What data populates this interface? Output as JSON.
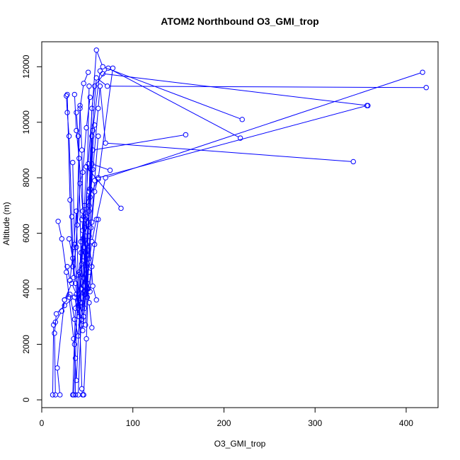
{
  "chart_data": {
    "type": "line",
    "title": "ATOM2 Northbound O3_GMI_trop",
    "xlabel": "O3_GMI_trop",
    "ylabel": "Altitude (m)",
    "xlim": [
      0,
      435
    ],
    "ylim": [
      -280,
      12900
    ],
    "x_ticks": [
      0,
      100,
      200,
      300,
      400
    ],
    "y_ticks": [
      0,
      2000,
      4000,
      6000,
      8000,
      10000,
      12000
    ],
    "grid": false,
    "legend": "none",
    "colors": {
      "series": "#0000ff",
      "axis": "#000000"
    },
    "series": [
      {
        "points": [
          [
            12,
            180
          ],
          [
            13,
            2700
          ],
          [
            15,
            2800
          ],
          [
            22,
            3200
          ],
          [
            25,
            3600
          ],
          [
            31,
            3800
          ],
          [
            36,
            2900
          ],
          [
            40,
            2300
          ],
          [
            44,
            3500
          ],
          [
            47,
            3800
          ],
          [
            55,
            5700
          ],
          [
            60,
            6500
          ],
          [
            70,
            8000
          ],
          [
            418,
            11800
          ]
        ]
      },
      {
        "points": [
          [
            15,
            180
          ],
          [
            14,
            2400
          ],
          [
            16,
            3100
          ],
          [
            25,
            3400
          ],
          [
            36,
            3700
          ],
          [
            45,
            2500
          ],
          [
            48,
            4500
          ],
          [
            52,
            7000
          ],
          [
            55,
            9500
          ],
          [
            60,
            11600
          ],
          [
            72,
            11300
          ],
          [
            422,
            11250
          ]
        ]
      },
      {
        "points": [
          [
            20,
            180
          ],
          [
            17,
            1150
          ],
          [
            25,
            3600
          ],
          [
            33,
            4200
          ],
          [
            38,
            3800
          ],
          [
            46,
            3000
          ],
          [
            50,
            4200
          ],
          [
            55,
            6400
          ],
          [
            58,
            7500
          ],
          [
            62,
            8000
          ],
          [
            357,
            10600
          ]
        ]
      },
      {
        "points": [
          [
            35,
            180
          ],
          [
            37,
            1500
          ],
          [
            40,
            4500
          ],
          [
            45,
            5000
          ],
          [
            48,
            3900
          ],
          [
            50,
            5200
          ],
          [
            53,
            7600
          ],
          [
            56,
            9700
          ],
          [
            64,
            11850
          ],
          [
            67,
            11750
          ],
          [
            358,
            10600
          ]
        ]
      },
      {
        "points": [
          [
            45,
            180
          ],
          [
            44,
            400
          ],
          [
            41,
            3600
          ],
          [
            46,
            4100
          ],
          [
            49,
            5600
          ],
          [
            52,
            6800
          ],
          [
            56,
            8300
          ],
          [
            62,
            10500
          ],
          [
            64,
            11300
          ],
          [
            70,
            9250
          ],
          [
            342,
            8580
          ]
        ]
      },
      {
        "points": [
          [
            37,
            180
          ],
          [
            36,
            2000
          ],
          [
            41,
            3800
          ],
          [
            43,
            5700
          ],
          [
            47,
            6200
          ],
          [
            51,
            8500
          ],
          [
            60,
            12600
          ],
          [
            67,
            12000
          ],
          [
            220,
            10100
          ]
        ]
      },
      {
        "points": [
          [
            46,
            180
          ],
          [
            49,
            2200
          ],
          [
            51,
            4000
          ],
          [
            48,
            5900
          ],
          [
            52,
            7500
          ],
          [
            55,
            10500
          ],
          [
            58,
            11300
          ],
          [
            73,
            11950
          ],
          [
            218,
            9430
          ]
        ]
      },
      {
        "points": [
          [
            40,
            180
          ],
          [
            43,
            2700
          ],
          [
            47,
            3900
          ],
          [
            50,
            5400
          ],
          [
            53,
            7300
          ],
          [
            56,
            9000
          ],
          [
            158,
            9550
          ]
        ]
      },
      {
        "points": [
          [
            34,
            180
          ],
          [
            37,
            3300
          ],
          [
            41,
            4600
          ],
          [
            45,
            5800
          ],
          [
            49,
            8400
          ],
          [
            87,
            6900
          ]
        ]
      },
      {
        "points": [
          [
            18,
            6430
          ],
          [
            22,
            5800
          ],
          [
            27,
            4600
          ],
          [
            30,
            3700
          ],
          [
            35,
            2200
          ],
          [
            38,
            700
          ],
          [
            42,
            3500
          ],
          [
            45,
            6100
          ],
          [
            47,
            7000
          ],
          [
            62,
            7950
          ],
          [
            78,
            11950
          ]
        ]
      },
      {
        "points": [
          [
            27,
            10950
          ],
          [
            28,
            10350
          ],
          [
            30,
            9500
          ],
          [
            33,
            6600
          ],
          [
            35,
            4400
          ],
          [
            39,
            6300
          ],
          [
            42,
            7800
          ],
          [
            45,
            8200
          ],
          [
            49,
            9800
          ],
          [
            53,
            10900
          ]
        ]
      },
      {
        "points": [
          [
            28,
            11000
          ],
          [
            31,
            7200
          ],
          [
            34,
            4800
          ],
          [
            38,
            5500
          ],
          [
            42,
            10500
          ],
          [
            46,
            11400
          ],
          [
            51,
            11800
          ]
        ]
      },
      {
        "points": [
          [
            36,
            11000
          ],
          [
            38,
            9700
          ],
          [
            41,
            8700
          ],
          [
            45,
            6800
          ],
          [
            49,
            4700
          ],
          [
            52,
            3500
          ],
          [
            55,
            2600
          ]
        ]
      },
      {
        "points": [
          [
            38,
            10350
          ],
          [
            40,
            9500
          ],
          [
            43,
            5300
          ],
          [
            47,
            3300
          ],
          [
            50,
            4900
          ],
          [
            54,
            6200
          ],
          [
            58,
            7900
          ],
          [
            62,
            9500
          ]
        ]
      },
      {
        "points": [
          [
            42,
            10600
          ],
          [
            44,
            9000
          ],
          [
            46,
            5500
          ],
          [
            48,
            3800
          ],
          [
            51,
            6400
          ],
          [
            54,
            8300
          ],
          [
            58,
            9900
          ]
        ]
      },
      {
        "points": [
          [
            52,
            11300
          ],
          [
            49,
            6600
          ],
          [
            46,
            4400
          ],
          [
            44,
            2900
          ],
          [
            48,
            2700
          ],
          [
            52,
            5100
          ],
          [
            55,
            8500
          ],
          [
            75,
            8270
          ]
        ]
      },
      {
        "points": [
          [
            34,
            8550
          ],
          [
            36,
            5600
          ],
          [
            40,
            3400
          ],
          [
            43,
            4000
          ],
          [
            46,
            6600
          ],
          [
            50,
            3700
          ],
          [
            62,
            6500
          ]
        ]
      },
      {
        "points": [
          [
            30,
            5800
          ],
          [
            34,
            5100
          ],
          [
            37,
            4200
          ],
          [
            40,
            3300
          ],
          [
            44,
            4900
          ],
          [
            48,
            6500
          ],
          [
            52,
            5900
          ],
          [
            56,
            4100
          ],
          [
            60,
            3600
          ]
        ]
      },
      {
        "points": [
          [
            44,
            6500
          ],
          [
            47,
            5500
          ],
          [
            50,
            4000
          ],
          [
            53,
            3900
          ],
          [
            55,
            4800
          ],
          [
            58,
            5600
          ]
        ]
      },
      {
        "points": [
          [
            28,
            4800
          ],
          [
            31,
            4300
          ],
          [
            35,
            5500
          ],
          [
            38,
            6800
          ],
          [
            41,
            3000
          ],
          [
            44,
            4000
          ],
          [
            48,
            5300
          ],
          [
            52,
            4600
          ]
        ]
      }
    ]
  }
}
